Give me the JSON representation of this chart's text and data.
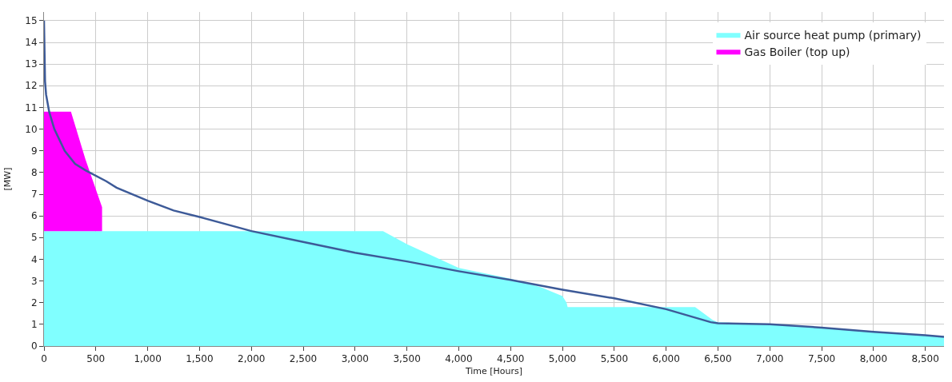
{
  "chart_data": {
    "type": "area",
    "xlabel": "Time [Hours]",
    "ylabel": "[MW]",
    "x": [
      0,
      260,
      400,
      560,
      561,
      3270,
      3500,
      4000,
      4500,
      4800,
      5000,
      5040,
      5050,
      6280,
      6450,
      6500,
      7000,
      7500,
      8000,
      8680
    ],
    "series": [
      {
        "name": "Air source heat pump (primary)",
        "color": "#80ffff",
        "values": [
          5.3,
          5.3,
          5.3,
          5.3,
          5.3,
          5.3,
          4.7,
          3.6,
          3.1,
          2.7,
          2.3,
          2.0,
          1.8,
          1.8,
          1.2,
          1.1,
          1.0,
          0.87,
          0.68,
          0.45
        ]
      },
      {
        "name": "Gas Boiler (top up)",
        "color": "#ff00ff",
        "values": [
          5.5,
          5.5,
          3.3,
          1.1,
          null,
          null,
          null,
          null,
          null,
          null,
          null,
          null,
          null,
          null,
          null,
          null,
          null,
          null,
          null,
          null
        ]
      },
      {
        "type": "line",
        "color": "#3d5a98",
        "x": [
          0,
          5,
          10,
          20,
          50,
          100,
          200,
          300,
          400,
          600,
          700,
          1000,
          1250,
          1500,
          2000,
          2500,
          3000,
          3500,
          4000,
          4500,
          5000,
          5500,
          6000,
          6430,
          6500,
          7000,
          7500,
          8000,
          8500,
          8680
        ],
        "values": [
          15,
          13.6,
          12.2,
          11.6,
          10.8,
          10,
          9,
          8.4,
          8.1,
          7.6,
          7.3,
          6.7,
          6.25,
          5.95,
          5.3,
          4.8,
          4.3,
          3.9,
          3.45,
          3.05,
          2.6,
          2.2,
          1.7,
          1.1,
          1.05,
          1.0,
          0.85,
          0.65,
          0.5,
          0.42
        ]
      }
    ],
    "stacked": true,
    "xlim": [
      0,
      8680
    ],
    "ylim": [
      0,
      15.4
    ],
    "xticks": [
      0,
      {
        "value": 500,
        "label": "500"
      },
      {
        "value": 1000,
        "label": "1,000"
      },
      {
        "value": 1500,
        "label": "1,500"
      },
      {
        "value": 2000,
        "label": "2,000"
      },
      {
        "value": 2500,
        "label": "2,500"
      },
      {
        "value": 3000,
        "label": "3,000"
      },
      {
        "value": 3500,
        "label": "3,500"
      },
      {
        "value": 4000,
        "label": "4,000"
      },
      {
        "value": 4500,
        "label": "4,500"
      },
      {
        "value": 5000,
        "label": "5,000"
      },
      {
        "value": 5500,
        "label": "5,500"
      },
      {
        "value": 6000,
        "label": "6,000"
      },
      {
        "value": 6500,
        "label": "6,500"
      },
      {
        "value": 7000,
        "label": "7,000"
      },
      {
        "value": 7500,
        "label": "7,500"
      },
      {
        "value": 8000,
        "label": "8,000"
      },
      {
        "value": 8500,
        "label": "8,500"
      }
    ],
    "yticks": [
      0,
      1,
      2,
      3,
      4,
      5,
      6,
      7,
      8,
      9,
      10,
      11,
      12,
      13,
      14,
      15
    ],
    "grid": true,
    "legend": "top right"
  }
}
